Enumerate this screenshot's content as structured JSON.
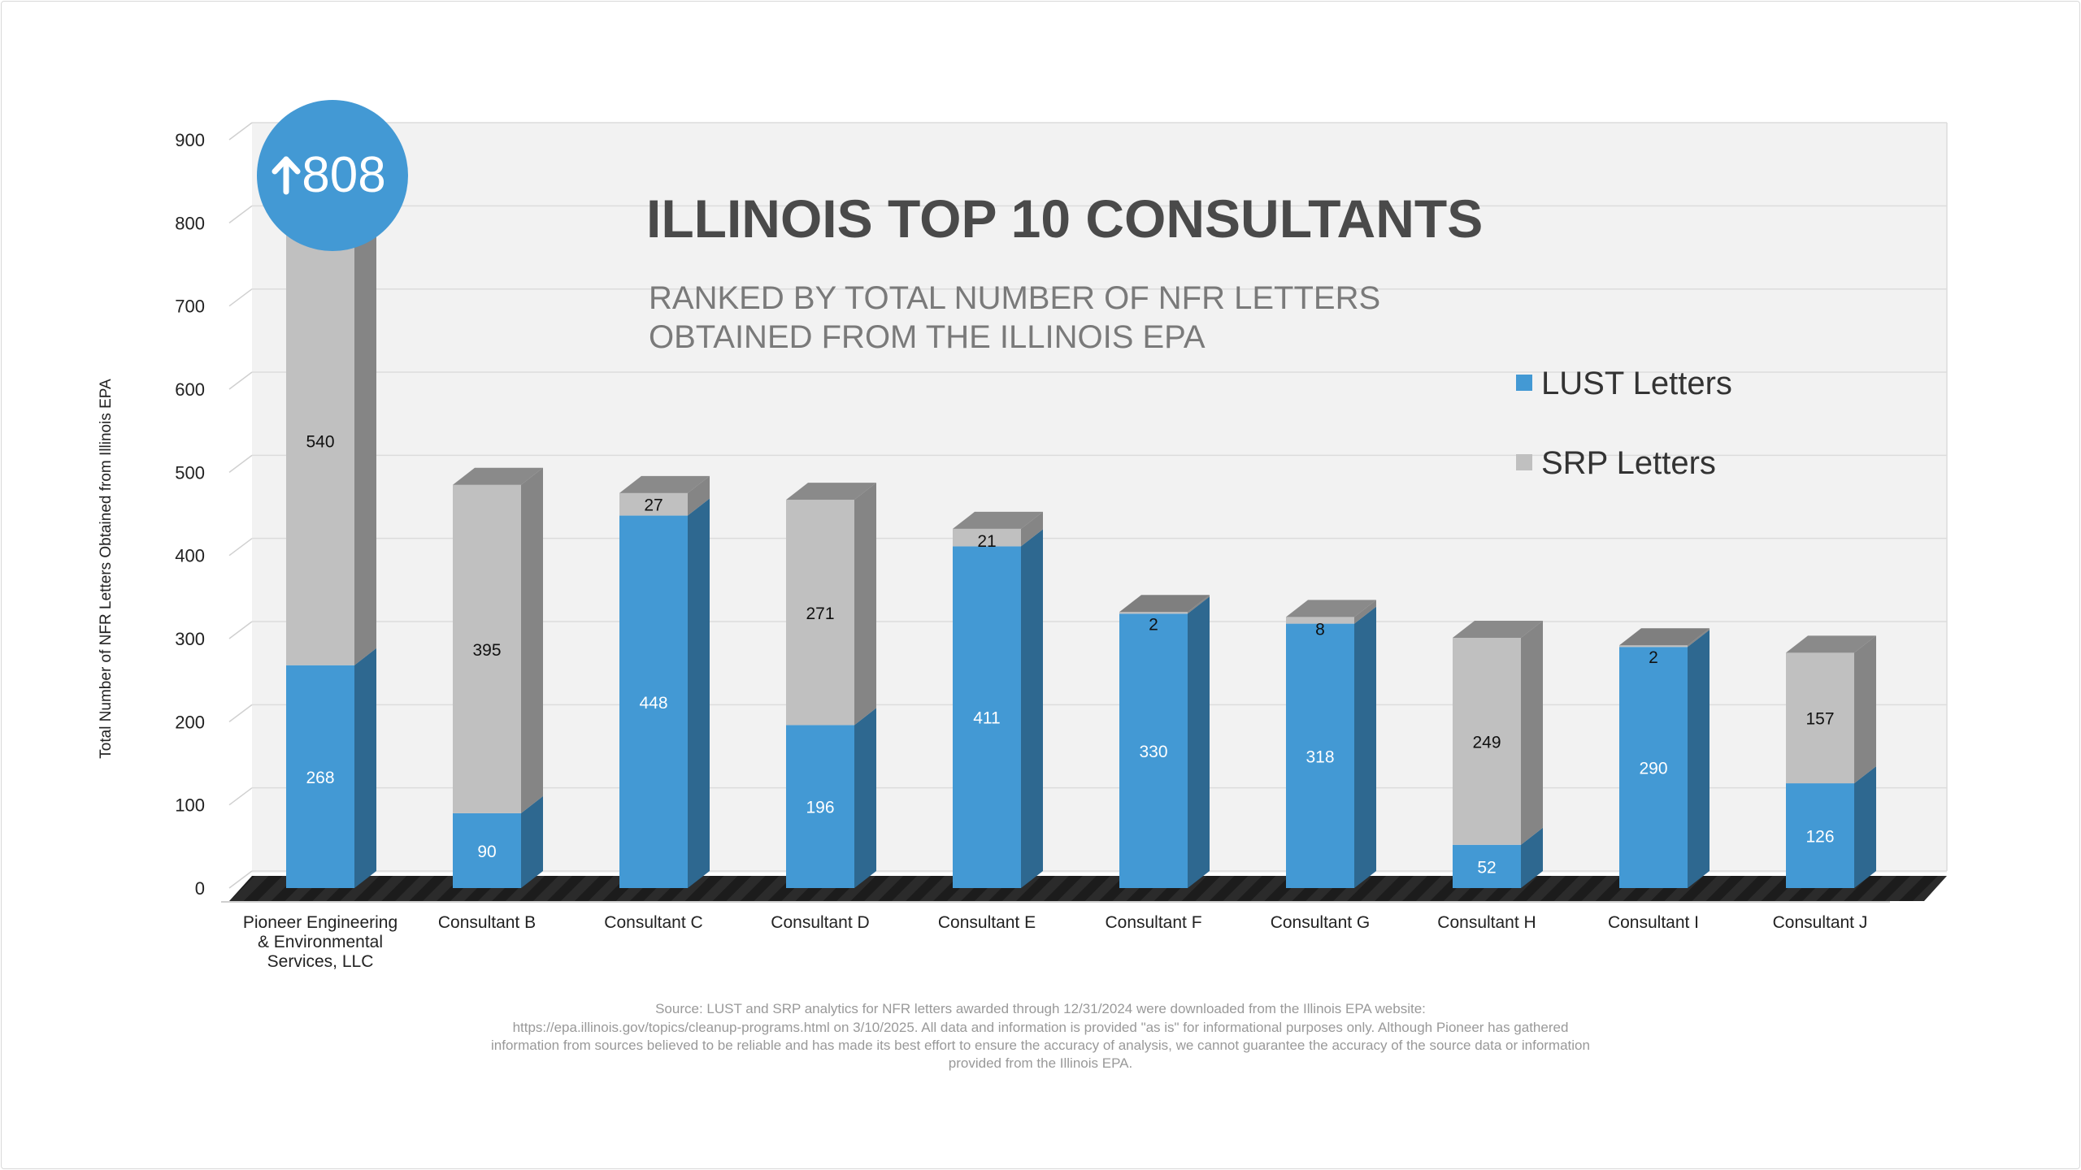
{
  "chart_data": {
    "type": "bar",
    "stacked": true,
    "title": "ILLINOIS TOP 10 CONSULTANTS",
    "subtitle": [
      "RANKED BY TOTAL NUMBER OF NFR LETTERS",
      "OBTAINED FROM THE ILLINOIS EPA"
    ],
    "ylabel": "Total Number of NFR Letters Obtained from Illinois EPA",
    "xlabel": "",
    "ylim": [
      0,
      900
    ],
    "yticks": [
      "0",
      "100",
      "200",
      "300",
      "400",
      "500",
      "600",
      "700",
      "800",
      "900"
    ],
    "categories": [
      [
        "Pioneer Engineering",
        "& Environmental",
        "Services, LLC"
      ],
      [
        "Consultant B"
      ],
      [
        "Consultant C"
      ],
      [
        "Consultant D"
      ],
      [
        "Consultant E"
      ],
      [
        "Consultant F"
      ],
      [
        "Consultant G"
      ],
      [
        "Consultant H"
      ],
      [
        "Consultant I"
      ],
      [
        "Consultant J"
      ]
    ],
    "series": [
      {
        "name": "LUST Letters",
        "color": "#4399d4",
        "values": [
          268,
          90,
          448,
          196,
          411,
          330,
          318,
          52,
          290,
          126
        ]
      },
      {
        "name": "SRP Letters",
        "color": "#c0c0c0",
        "values": [
          540,
          395,
          27,
          271,
          21,
          2,
          8,
          249,
          2,
          157
        ]
      }
    ],
    "highlight": {
      "label": "808",
      "icon": "up-arrow-icon",
      "color": "#4399d4"
    },
    "legend_position": "top-right",
    "grid": true
  },
  "source_note": [
    "Source: LUST and SRP analytics for NFR letters awarded through 12/31/2024 were downloaded from the Illinois EPA website:",
    "https://epa.illinois.gov/topics/cleanup-programs.html on 3/10/2025. All data and information is provided \"as is\" for informational purposes only. Although Pioneer has gathered",
    "information from sources believed to be reliable and has made its best effort to ensure the accuracy of analysis, we cannot guarantee the accuracy of the source data or information",
    "provided from the Illinois EPA."
  ]
}
